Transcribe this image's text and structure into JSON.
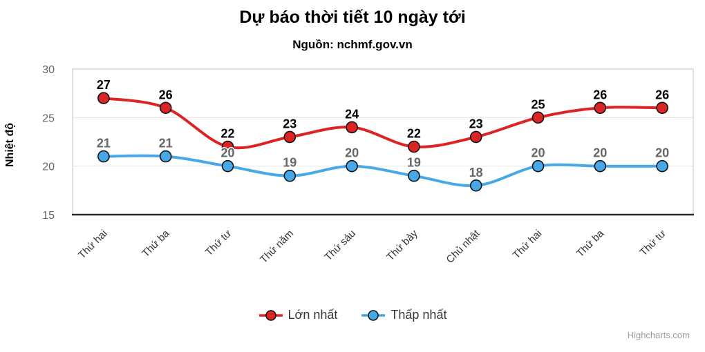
{
  "title": "Dự báo thời tiết 10 ngày tới",
  "subtitle": "Nguồn: nchmf.gov.vn",
  "credit": "Highcharts.com",
  "chart_data": {
    "type": "line",
    "title": "Dự báo thời tiết 10 ngày tới",
    "subtitle": "Nguồn: nchmf.gov.vn",
    "categories": [
      "Thứ hai",
      "Thứ ba",
      "Thứ tư",
      "Thứ năm",
      "Thứ sáu",
      "Thứ bảy",
      "Chủ nhật",
      "Thứ hai",
      "Thứ ba",
      "Thứ tư"
    ],
    "series": [
      {
        "name": "Lớn nhất",
        "color": "#dd2424",
        "label_color": "#000000",
        "values": [
          27,
          26,
          22,
          23,
          24,
          22,
          23,
          25,
          26,
          26
        ]
      },
      {
        "name": "Thấp nhất",
        "color": "#48a7e6",
        "label_color": "#666666",
        "values": [
          21,
          21,
          20,
          19,
          20,
          19,
          18,
          20,
          20,
          20
        ]
      }
    ],
    "xlabel": "",
    "ylabel": "Nhiệt độ",
    "ylim": [
      15,
      30
    ],
    "yticks": [
      15,
      20,
      25,
      30
    ],
    "grid": true,
    "legend_position": "bottom",
    "marker_stroke": "#111111",
    "grid_color": "#e4e4e4",
    "border_color": "#c4c4c4",
    "axis_line_color": "#2b2b2b"
  }
}
